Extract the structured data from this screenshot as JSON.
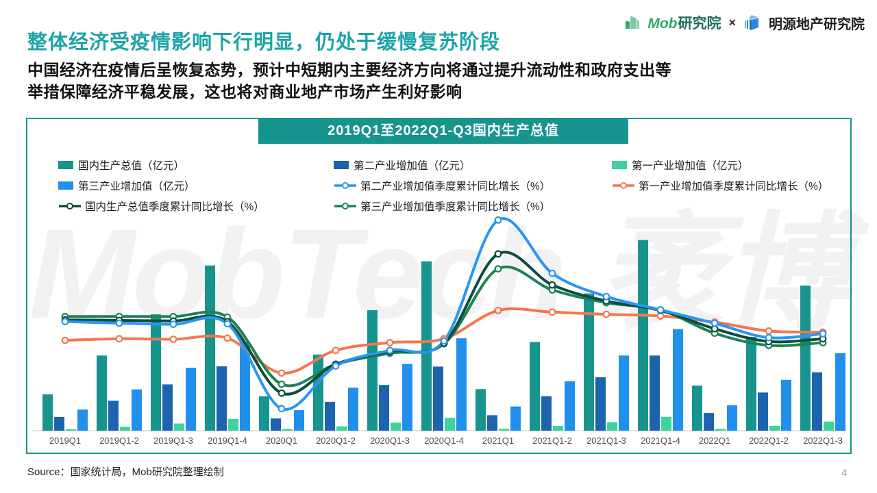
{
  "header": {
    "title": "整体经济受疫情影响下行明显，仍处于缓慢复苏阶段",
    "subtitle_line1": "中国经济在疫情后呈恢复态势，预计中短期内主要经济方向将通过提升流动性和政府支出等",
    "subtitle_line2": "举措保障经济平稳发展，这也将对商业地产市场产生利好影响",
    "logos": {
      "mob_brand": "Mob",
      "mob_inst": "研究院",
      "separator": "×",
      "mingyuan": "明源地产研究院"
    }
  },
  "watermark": {
    "text": "MobTech 袤博"
  },
  "chart": {
    "title": "2019Q1至2022Q1-Q3国内生产总值"
  },
  "footer": {
    "source": "Source：国家统计局，Mob研究院整理绘制",
    "page_number": "4"
  },
  "colors": {
    "accent_teal": "#17948E",
    "title_teal": "#1CA4A8",
    "axis_line": "#dcdcdc",
    "tick_label": "#4c4c4c"
  },
  "chart_data": {
    "type": "bar+line",
    "title": "2019Q1至2022Q1-Q3国内生产总值",
    "categories": [
      "2019Q1",
      "2019Q1-2",
      "2019Q1-3",
      "2019Q1-4",
      "2020Q1",
      "2020Q1-2",
      "2020Q1-3",
      "2020Q1-4",
      "2021Q1",
      "2021Q1-2",
      "2021Q1-3",
      "2021Q1-4",
      "2022Q1",
      "2022Q1-2",
      "2022Q1-3"
    ],
    "bar_axis": {
      "unit": "亿元",
      "ylim": [
        0,
        1150000
      ]
    },
    "line_axis": {
      "unit": "%",
      "ylim": [
        -10,
        25
      ]
    },
    "grid": false,
    "legend_position": "top-left",
    "bar_series": [
      {
        "id": "gdp_bar",
        "name": "国内生产总值（亿元）",
        "color": "#17948E",
        "values": [
          218063,
          450933,
          697798,
          990865,
          206504,
          456614,
          722786,
          1015986,
          249310,
          532167,
          823131,
          1143670,
          270178,
          562642,
          870269
        ]
      },
      {
        "id": "secondary_bar",
        "name": "第二产业增加值（亿元）",
        "color": "#1D64AE",
        "values": [
          82346,
          179984,
          277546,
          386165,
          73638,
          172759,
          274267,
          384255,
          92623,
          207154,
          320940,
          450904,
          106187,
          228636,
          350189
        ]
      },
      {
        "id": "primary_bar",
        "name": "第一产业增加值（亿元）",
        "color": "#3ED39C",
        "values": [
          8769,
          23207,
          43005,
          70467,
          10186,
          26053,
          48123,
          77754,
          11332,
          28402,
          51430,
          83086,
          10954,
          29137,
          54779
        ]
      },
      {
        "id": "tertiary_bar",
        "name": "第三产业增加值（亿元）",
        "color": "#2090EC",
        "values": [
          126948,
          247743,
          377247,
          534233,
          122680,
          257802,
          400397,
          553977,
          145355,
          296611,
          450761,
          609680,
          153037,
          304868,
          465300
        ]
      }
    ],
    "line_series": [
      {
        "id": "primary_line",
        "name": "第一产业增加值季度累计同比增长（%）",
        "color": "#F5764E",
        "values": [
          2.7,
          3.0,
          2.9,
          3.1,
          -3.2,
          0.9,
          2.3,
          3.0,
          8.1,
          7.8,
          7.4,
          7.1,
          6.0,
          4.4,
          4.2
        ]
      },
      {
        "id": "tertiary_line",
        "name": "第三产业增加值季度累计同比增长（%）",
        "color": "#1B8352",
        "values": [
          7.0,
          7.0,
          7.0,
          6.9,
          -5.2,
          -1.6,
          0.4,
          2.1,
          15.6,
          11.8,
          9.5,
          8.2,
          4.0,
          1.8,
          2.3
        ]
      },
      {
        "id": "gdp_line",
        "name": "国内生产总值季度累计同比增长（%）",
        "color": "#0E4B40",
        "values": [
          6.4,
          6.3,
          6.2,
          6.1,
          -6.8,
          -1.6,
          0.7,
          2.2,
          18.3,
          12.7,
          9.8,
          8.1,
          4.8,
          2.5,
          3.0
        ]
      },
      {
        "id": "secondary_line",
        "name": "第二产业增加值季度累计同比增长（%）",
        "color": "#2897F1",
        "values": [
          6.1,
          5.8,
          5.6,
          5.7,
          -9.6,
          -1.9,
          0.9,
          2.6,
          24.4,
          14.8,
          10.6,
          8.2,
          5.8,
          3.2,
          3.9
        ]
      }
    ],
    "legend_columns": [
      [
        "gdp_bar",
        "tertiary_bar",
        "gdp_line"
      ],
      [
        "secondary_bar",
        "secondary_line",
        "tertiary_line"
      ],
      [
        "primary_bar",
        "primary_line"
      ]
    ]
  }
}
